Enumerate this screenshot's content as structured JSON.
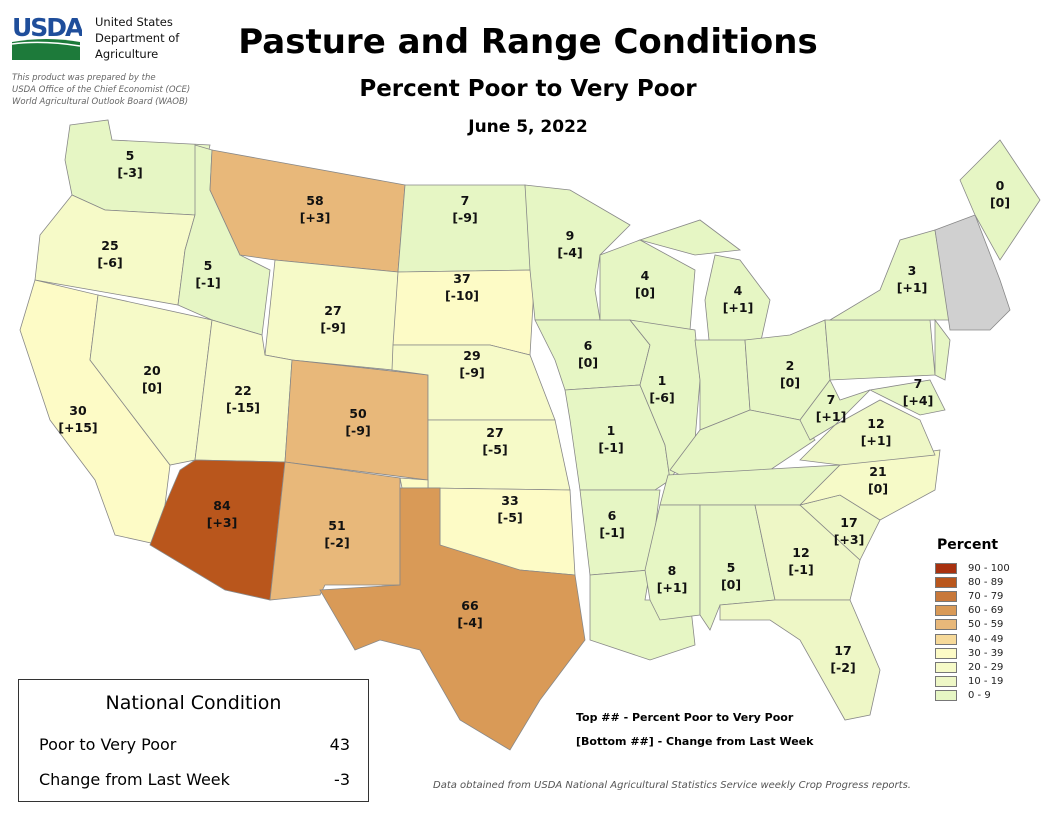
{
  "header": {
    "logo_text": "USDA",
    "dept": [
      "United States",
      "Department of",
      "Agriculture"
    ],
    "prepared": [
      "This product was prepared by the",
      "USDA Office of the Chief Economist (OCE)",
      "World Agricultural Outlook Board (WAOB)"
    ],
    "title": "Pasture and Range Conditions",
    "subtitle": "Percent Poor to Very Poor",
    "date": "June 5, 2022"
  },
  "states": [
    {
      "id": "WA",
      "value": "5",
      "change": "[-3]",
      "color": "#e6f6c4"
    },
    {
      "id": "OR",
      "value": "25",
      "change": "[-6]",
      "color": "#f6fac8"
    },
    {
      "id": "CA",
      "value": "30",
      "change": "[+15]",
      "color": "#fdfbc6"
    },
    {
      "id": "NV",
      "value": "20",
      "change": "[0]",
      "color": "#f6fac8"
    },
    {
      "id": "ID",
      "value": "5",
      "change": "[-1]",
      "color": "#e6f6c4"
    },
    {
      "id": "MT",
      "value": "58",
      "change": "[+3]",
      "color": "#e8b87a"
    },
    {
      "id": "WY",
      "value": "27",
      "change": "[-9]",
      "color": "#f6fac8"
    },
    {
      "id": "UT",
      "value": "22",
      "change": "[-15]",
      "color": "#f6fac8"
    },
    {
      "id": "CO",
      "value": "50",
      "change": "[-9]",
      "color": "#e8b87a"
    },
    {
      "id": "AZ",
      "value": "84",
      "change": "[+3]",
      "color": "#b9561c"
    },
    {
      "id": "NM",
      "value": "51",
      "change": "[-2]",
      "color": "#e8b87a"
    },
    {
      "id": "ND",
      "value": "7",
      "change": "[-9]",
      "color": "#e6f6c4"
    },
    {
      "id": "SD",
      "value": "37",
      "change": "[-10]",
      "color": "#fdfbc6"
    },
    {
      "id": "NE",
      "value": "29",
      "change": "[-9]",
      "color": "#f6fac8"
    },
    {
      "id": "KS",
      "value": "27",
      "change": "[-5]",
      "color": "#f6fac8"
    },
    {
      "id": "OK",
      "value": "33",
      "change": "[-5]",
      "color": "#fdfbc6"
    },
    {
      "id": "TX",
      "value": "66",
      "change": "[-4]",
      "color": "#d99a57"
    },
    {
      "id": "MN",
      "value": "9",
      "change": "[-4]",
      "color": "#e6f6c4"
    },
    {
      "id": "IA",
      "value": "6",
      "change": "[0]",
      "color": "#e6f6c4"
    },
    {
      "id": "MO",
      "value": "1",
      "change": "[-1]",
      "color": "#e6f6c4"
    },
    {
      "id": "AR",
      "value": "6",
      "change": "[-1]",
      "color": "#e6f6c4"
    },
    {
      "id": "LA",
      "value": "",
      "change": "",
      "color": "#e6f6c4"
    },
    {
      "id": "WI",
      "value": "4",
      "change": "[0]",
      "color": "#e6f6c4"
    },
    {
      "id": "IL",
      "value": "1",
      "change": "[-6]",
      "color": "#e6f6c4"
    },
    {
      "id": "MI",
      "value": "4",
      "change": "[+1]",
      "color": "#e6f6c4"
    },
    {
      "id": "IN",
      "value": "",
      "change": "",
      "color": "#e6f6c4"
    },
    {
      "id": "OH",
      "value": "2",
      "change": "[0]",
      "color": "#e6f6c4"
    },
    {
      "id": "KY",
      "value": "",
      "change": "",
      "color": "#e6f6c4"
    },
    {
      "id": "TN",
      "value": "",
      "change": "",
      "color": "#e6f6c4"
    },
    {
      "id": "MS",
      "value": "8",
      "change": "[+1]",
      "color": "#e6f6c4"
    },
    {
      "id": "AL",
      "value": "5",
      "change": "[0]",
      "color": "#e6f6c4"
    },
    {
      "id": "GA",
      "value": "12",
      "change": "[-1]",
      "color": "#eef7c6"
    },
    {
      "id": "FL",
      "value": "17",
      "change": "[-2]",
      "color": "#eef7c6"
    },
    {
      "id": "SC",
      "value": "17",
      "change": "[+3]",
      "color": "#eef7c6"
    },
    {
      "id": "NC",
      "value": "21",
      "change": "[0]",
      "color": "#f6fac8"
    },
    {
      "id": "VA",
      "value": "12",
      "change": "[+1]",
      "color": "#eef7c6"
    },
    {
      "id": "WV",
      "value": "7",
      "change": "[+1]",
      "color": "#e6f6c4"
    },
    {
      "id": "PA",
      "value": "",
      "change": "",
      "color": "#e6f6c4"
    },
    {
      "id": "NY",
      "value": "3",
      "change": "[+1]",
      "color": "#e6f6c4"
    },
    {
      "id": "NJ",
      "value": "",
      "change": "",
      "color": "#e6f6c4"
    },
    {
      "id": "MD",
      "value": "7",
      "change": "[+4]",
      "color": "#e6f6c4"
    },
    {
      "id": "NE-gray",
      "value": "",
      "change": "",
      "color": "#d0d0d0"
    },
    {
      "id": "ME",
      "value": "0",
      "change": "[0]",
      "color": "#e6f6c4"
    }
  ],
  "legend": {
    "title": "Percent",
    "items": [
      {
        "label": "90 - 100",
        "color": "#a8310f"
      },
      {
        "label": "80 - 89",
        "color": "#b9561c"
      },
      {
        "label": "70 - 79",
        "color": "#c8783a"
      },
      {
        "label": "60 - 69",
        "color": "#d99a57"
      },
      {
        "label": "50 - 59",
        "color": "#e8b87a"
      },
      {
        "label": "40 - 49",
        "color": "#f6d999"
      },
      {
        "label": "30 - 39",
        "color": "#fdfbc6"
      },
      {
        "label": "20 - 29",
        "color": "#f6fac8"
      },
      {
        "label": "10 - 19",
        "color": "#eef7c6"
      },
      {
        "label": "0 - 9",
        "color": "#e6f6c4"
      }
    ]
  },
  "national": {
    "title": "National Condition",
    "rows": [
      {
        "label": "Poor to Very Poor",
        "value": "43"
      },
      {
        "label": "Change from Last Week",
        "value": "-3"
      }
    ]
  },
  "key": {
    "top": "Top ## - Percent Poor to Very Poor",
    "bottom": "[Bottom ##] - Change from Last Week"
  },
  "source": "Data obtained from USDA National Agricultural Statistics Service weekly Crop Progress reports."
}
